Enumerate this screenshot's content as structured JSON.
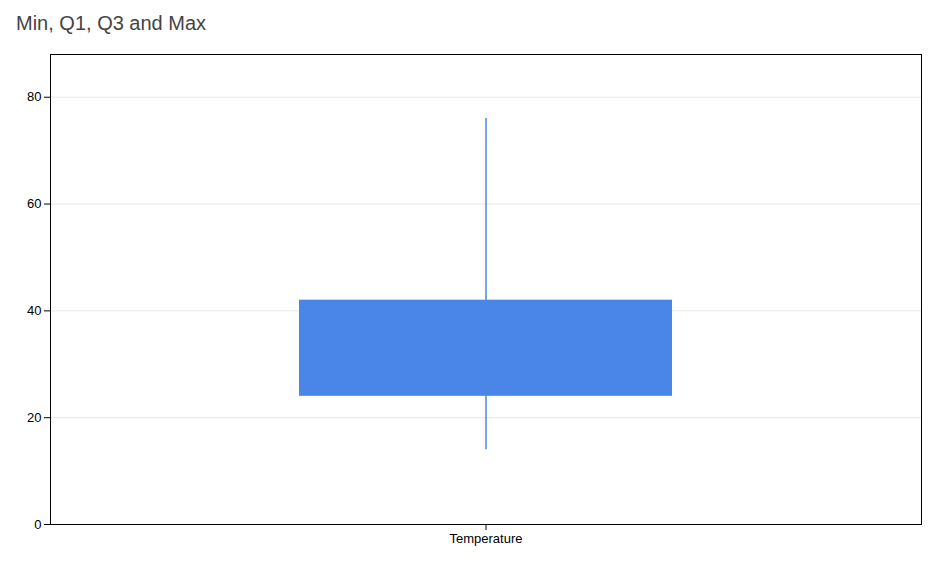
{
  "chart_data": {
    "type": "box",
    "title": "Min, Q1, Q3 and Max",
    "categories": [
      "Temperature"
    ],
    "min": [
      14
    ],
    "q1": [
      24
    ],
    "q3": [
      42
    ],
    "max": [
      76
    ],
    "color": "#4a86e8",
    "ylim": [
      0,
      88
    ],
    "yticks": [
      0,
      20,
      40,
      60,
      80
    ],
    "grid": true
  }
}
